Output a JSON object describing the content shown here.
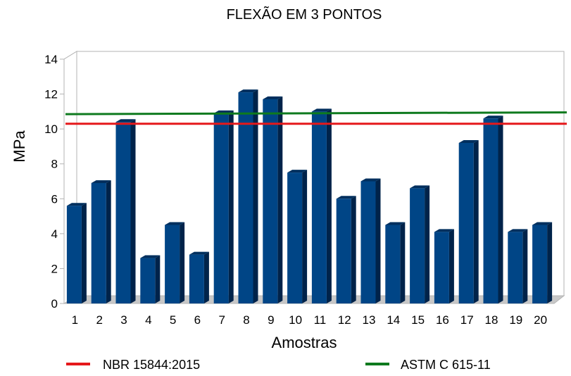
{
  "chart_data": {
    "type": "bar",
    "title": "FLEXÃO EM 3 PONTOS",
    "xlabel": "Amostras",
    "ylabel": "MPa",
    "categories": [
      "1",
      "2",
      "3",
      "4",
      "5",
      "6",
      "7",
      "8",
      "9",
      "10",
      "11",
      "12",
      "13",
      "14",
      "15",
      "16",
      "17",
      "18",
      "19",
      "20"
    ],
    "values": [
      5.6,
      6.9,
      10.4,
      2.6,
      4.5,
      2.8,
      10.9,
      12.1,
      11.7,
      7.5,
      11.0,
      6.0,
      7.0,
      4.5,
      6.6,
      4.1,
      9.2,
      10.6,
      4.1,
      4.5
    ],
    "ylim": [
      0,
      14
    ],
    "yticks": [
      "0",
      "2",
      "4",
      "6",
      "8",
      "10",
      "12",
      "14"
    ],
    "grid": true,
    "bar_color": "#004586",
    "reference_lines": [
      {
        "name": "NBR 15844:2015",
        "value": 10.3,
        "color": "#e5181b"
      },
      {
        "name": "ASTM C 615-11",
        "value_start": 10.85,
        "value_end": 10.95,
        "color": "#0e7a1e"
      }
    ],
    "legend_position": "bottom"
  }
}
